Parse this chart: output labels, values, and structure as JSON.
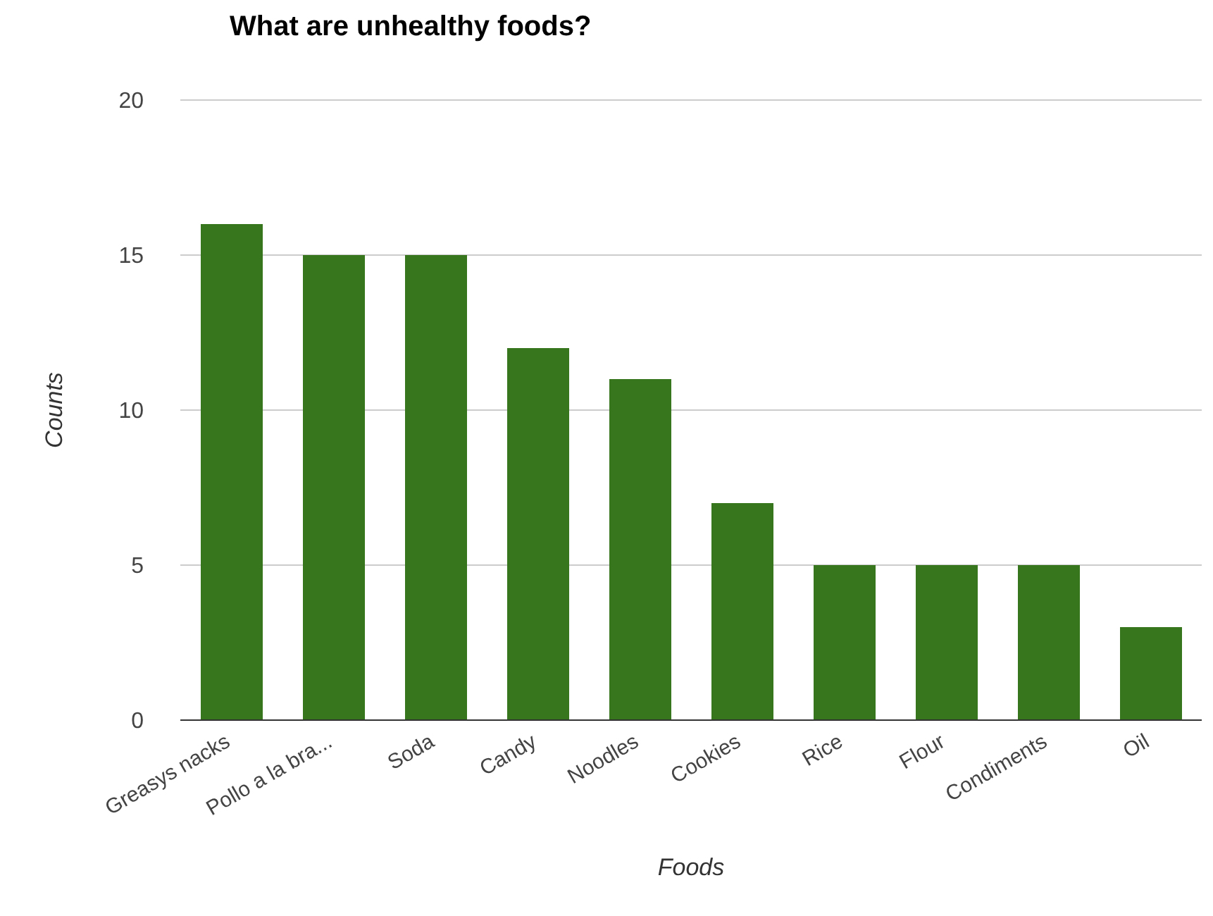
{
  "chart_data": {
    "type": "bar",
    "title": "What are unhealthy foods?",
    "xlabel": "Foods",
    "ylabel": "Counts",
    "categories": [
      "Greasys nacks",
      "Pollo a la bra...",
      "Soda",
      "Candy",
      "Noodles",
      "Cookies",
      "Rice",
      "Flour",
      "Condiments",
      "Oil"
    ],
    "values": [
      16,
      15,
      15,
      12,
      11,
      7,
      5,
      5,
      5,
      3
    ],
    "color": "#38761d",
    "ylim": [
      0,
      20
    ],
    "yticks": [
      0,
      5,
      10,
      15,
      20
    ],
    "grid": "y"
  }
}
